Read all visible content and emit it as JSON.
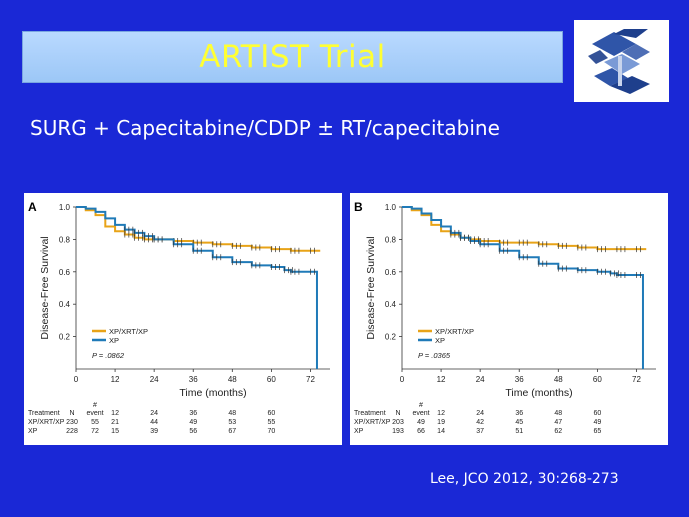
{
  "slide": {
    "title": "ARTIST Trial",
    "subtitle": "SURG + Capecitabine/CDDP ± RT/capecitabine",
    "citation": "Lee, JCO 2012, 30:268-273",
    "logo_icon": "stylized-s-logo-icon",
    "colors": {
      "background": "#1a28d6",
      "title_text": "#ffff33",
      "title_box": "#a9cff8"
    }
  },
  "chart_data": [
    {
      "panel_label": "A",
      "type": "line",
      "ylabel": "Disease-Free Survival",
      "xlabel": "Time (months)",
      "xticks": [
        0,
        12,
        24,
        36,
        48,
        60,
        72
      ],
      "yticks": [
        "0.2",
        "0.4",
        "0.6",
        "0.8",
        "1.0"
      ],
      "ylim": [
        0,
        1.0
      ],
      "xlim": [
        0,
        78
      ],
      "legend_position": "bottom-left",
      "p_value": "P = .0862",
      "series": [
        {
          "name": "XP/XRT/XP",
          "color": "#e8a317",
          "x": [
            0,
            3,
            6,
            9,
            12,
            15,
            18,
            21,
            24,
            30,
            36,
            42,
            48,
            54,
            60,
            66,
            72,
            75
          ],
          "y": [
            1.0,
            0.98,
            0.95,
            0.88,
            0.85,
            0.83,
            0.81,
            0.8,
            0.8,
            0.79,
            0.78,
            0.77,
            0.76,
            0.75,
            0.74,
            0.73,
            0.73,
            0.73
          ]
        },
        {
          "name": "XP",
          "color": "#1f7ab8",
          "x": [
            0,
            3,
            6,
            9,
            12,
            15,
            18,
            21,
            24,
            30,
            36,
            42,
            48,
            54,
            60,
            64,
            66,
            72,
            74,
            74
          ],
          "y": [
            1.0,
            0.99,
            0.97,
            0.93,
            0.89,
            0.86,
            0.84,
            0.82,
            0.8,
            0.77,
            0.73,
            0.69,
            0.66,
            0.64,
            0.63,
            0.61,
            0.6,
            0.6,
            0.6,
            0.0
          ]
        }
      ],
      "risk_table": {
        "header_label": "Treatment",
        "n_label": "N",
        "event_label": "# event",
        "times": [
          "12",
          "24",
          "36",
          "48",
          "60"
        ],
        "rows": [
          {
            "name": "XP/XRT/XP",
            "n": "230",
            "event": "55",
            "values": [
              "21",
              "44",
              "49",
              "53",
              "55"
            ]
          },
          {
            "name": "XP",
            "n": "228",
            "event": "72",
            "values": [
              "15",
              "39",
              "56",
              "67",
              "70"
            ]
          }
        ]
      }
    },
    {
      "panel_label": "B",
      "type": "line",
      "ylabel": "Disease-Free Survival",
      "xlabel": "Time (months)",
      "xticks": [
        0,
        12,
        24,
        36,
        48,
        60,
        72
      ],
      "yticks": [
        "0.2",
        "0.4",
        "0.6",
        "0.8",
        "1.0"
      ],
      "ylim": [
        0,
        1.0
      ],
      "xlim": [
        0,
        78
      ],
      "legend_position": "bottom-left",
      "p_value": "P = .0365",
      "series": [
        {
          "name": "XP/XRT/XP",
          "color": "#e8a317",
          "x": [
            0,
            3,
            6,
            9,
            12,
            15,
            18,
            21,
            24,
            30,
            36,
            42,
            48,
            54,
            60,
            66,
            72,
            75
          ],
          "y": [
            1.0,
            0.98,
            0.95,
            0.89,
            0.85,
            0.83,
            0.81,
            0.8,
            0.79,
            0.78,
            0.78,
            0.77,
            0.76,
            0.75,
            0.74,
            0.74,
            0.74,
            0.74
          ]
        },
        {
          "name": "XP",
          "color": "#1f7ab8",
          "x": [
            0,
            3,
            6,
            9,
            12,
            15,
            18,
            21,
            24,
            30,
            36,
            42,
            48,
            54,
            60,
            64,
            66,
            72,
            74,
            74
          ],
          "y": [
            1.0,
            0.99,
            0.96,
            0.92,
            0.88,
            0.84,
            0.81,
            0.79,
            0.77,
            0.73,
            0.69,
            0.65,
            0.62,
            0.61,
            0.6,
            0.59,
            0.58,
            0.58,
            0.58,
            0.0
          ]
        }
      ],
      "risk_table": {
        "header_label": "Treatment",
        "n_label": "N",
        "event_label": "# event",
        "times": [
          "12",
          "24",
          "36",
          "48",
          "60"
        ],
        "rows": [
          {
            "name": "XP/XRT/XP",
            "n": "203",
            "event": "49",
            "values": [
              "19",
              "42",
              "45",
              "47",
              "49"
            ]
          },
          {
            "name": "XP",
            "n": "193",
            "event": "66",
            "values": [
              "14",
              "37",
              "51",
              "62",
              "65"
            ]
          }
        ]
      }
    }
  ]
}
